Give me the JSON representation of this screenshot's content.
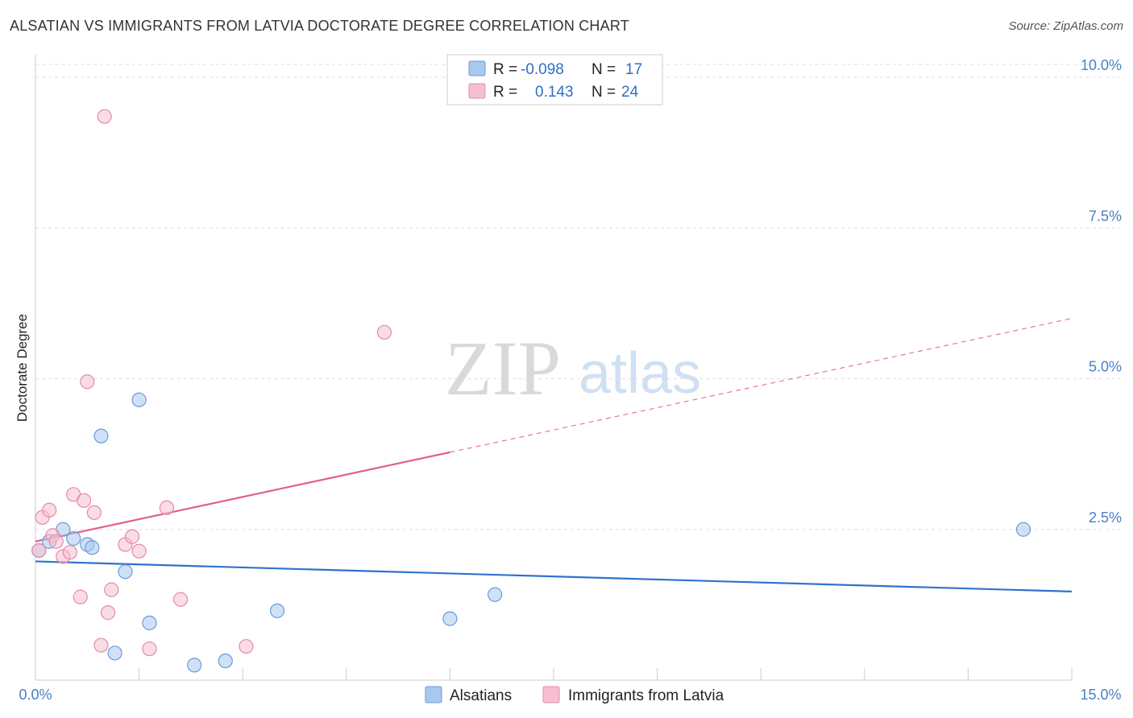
{
  "title": "ALSATIAN VS IMMIGRANTS FROM LATVIA DOCTORATE DEGREE CORRELATION CHART",
  "source": "Source: ZipAtlas.com",
  "watermark": {
    "zip": "ZIP",
    "atlas": "atlas"
  },
  "legend": {
    "rows": [
      {
        "r_label": "R =",
        "r_value": "-0.098",
        "n_label": "N =",
        "n_value": "17",
        "color": "#a9c8f0",
        "stroke": "#6a9ad8"
      },
      {
        "r_label": "R =",
        "r_value": "0.143",
        "n_label": "N =",
        "n_value": "24",
        "color": "#f6bfd0",
        "stroke": "#e68aa8"
      }
    ]
  },
  "bottom_legend": {
    "alsatians": "Alsatians",
    "latvia": "Immigrants from Latvia"
  },
  "colors": {
    "blue_fill": "#a9c8f0",
    "blue_stroke": "#6a9ad8",
    "blue_line": "#2f72cf",
    "pink_fill": "#f6bfd0",
    "pink_stroke": "#e68aa8",
    "pink_line": "#e0608f",
    "grid": "#dddddd",
    "tick_label": "#4a7fc9"
  },
  "chart_data": {
    "type": "scatter",
    "title": "ALSATIAN VS IMMIGRANTS FROM LATVIA DOCTORATE DEGREE CORRELATION CHART",
    "xlabel": "",
    "ylabel": "Doctorate Degree",
    "xlim": [
      0,
      15
    ],
    "ylim": [
      0,
      10.25
    ],
    "x_tick_labels": [
      "0.0%",
      "15.0%"
    ],
    "y_ticks": [
      2.5,
      5.0,
      7.5,
      10.0
    ],
    "y_tick_labels": [
      "2.5%",
      "5.0%",
      "7.5%",
      "10.0%"
    ],
    "series": [
      {
        "name": "Alsatians",
        "points": [
          [
            0.05,
            2.15
          ],
          [
            0.2,
            2.3
          ],
          [
            0.4,
            2.5
          ],
          [
            0.55,
            2.35
          ],
          [
            0.75,
            2.25
          ],
          [
            0.82,
            2.2
          ],
          [
            0.95,
            4.05
          ],
          [
            1.5,
            4.65
          ],
          [
            1.3,
            1.8
          ],
          [
            1.65,
            0.95
          ],
          [
            1.15,
            0.45
          ],
          [
            2.3,
            0.25
          ],
          [
            2.75,
            0.32
          ],
          [
            3.5,
            1.15
          ],
          [
            6.0,
            1.02
          ],
          [
            6.65,
            1.42
          ],
          [
            14.3,
            2.5
          ]
        ],
        "trend": {
          "x0": 0,
          "y0": 1.97,
          "x1": 15,
          "y1": 1.47,
          "dashed_from": null
        }
      },
      {
        "name": "Immigrants from Latvia",
        "points": [
          [
            0.05,
            2.15
          ],
          [
            0.1,
            2.7
          ],
          [
            0.2,
            2.82
          ],
          [
            0.25,
            2.4
          ],
          [
            0.3,
            2.3
          ],
          [
            0.4,
            2.05
          ],
          [
            0.5,
            2.12
          ],
          [
            0.55,
            3.08
          ],
          [
            0.65,
            1.38
          ],
          [
            0.7,
            2.98
          ],
          [
            0.75,
            4.95
          ],
          [
            0.85,
            2.78
          ],
          [
            0.95,
            0.58
          ],
          [
            1.0,
            9.35
          ],
          [
            1.05,
            1.12
          ],
          [
            1.1,
            1.5
          ],
          [
            1.3,
            2.25
          ],
          [
            1.4,
            2.38
          ],
          [
            1.5,
            2.14
          ],
          [
            1.65,
            0.52
          ],
          [
            1.9,
            2.86
          ],
          [
            2.1,
            1.34
          ],
          [
            3.05,
            0.56
          ],
          [
            5.05,
            5.77
          ]
        ],
        "trend": {
          "x0": 0,
          "y0": 2.3,
          "x1": 15,
          "y1": 6.0,
          "dashed_from": 6.0
        }
      }
    ]
  }
}
